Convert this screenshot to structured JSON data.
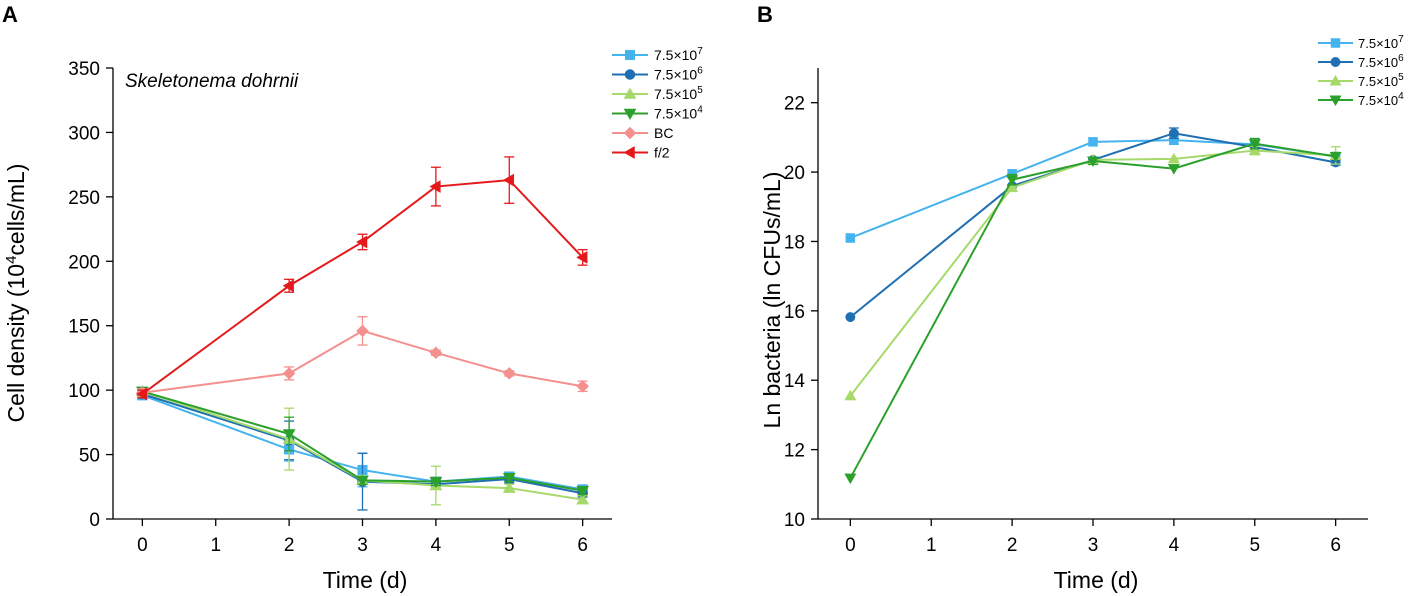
{
  "chart_data": [
    {
      "panel": "A",
      "type": "line",
      "annotation": "Skeletonema dohrnii",
      "xlabel": "Time (d)",
      "ylabel_prefix": "Cell density (10",
      "ylabel_sup": "4",
      "ylabel_suffix": "cells/mL)",
      "xlim": [
        -0.4,
        6.4
      ],
      "ylim": [
        0,
        350
      ],
      "xticks": [
        0,
        1,
        2,
        3,
        4,
        5,
        6
      ],
      "yticks": [
        0,
        50,
        100,
        150,
        200,
        250,
        300,
        350
      ],
      "legend_position": "top-right",
      "series": [
        {
          "label_base": "7.5×10",
          "label_sup": "7",
          "color": "#45b3ee",
          "marker": "square",
          "x": [
            0,
            2,
            3,
            4,
            5,
            6
          ],
          "y": [
            96,
            54,
            38,
            29,
            33,
            23
          ],
          "err": [
            3,
            9,
            13,
            3,
            3,
            3
          ]
        },
        {
          "label_base": "7.5×10",
          "label_sup": "6",
          "color": "#1f6fb2",
          "marker": "circle",
          "x": [
            0,
            2,
            3,
            4,
            5,
            6
          ],
          "y": [
            97,
            61,
            29,
            27,
            31,
            20
          ],
          "err": [
            3,
            15,
            22,
            3,
            3,
            3
          ]
        },
        {
          "label_base": "7.5×10",
          "label_sup": "5",
          "color": "#a6d96a",
          "marker": "triangle-up",
          "x": [
            0,
            2,
            3,
            4,
            5,
            6
          ],
          "y": [
            99,
            62,
            30,
            26,
            24,
            15
          ],
          "err": [
            3,
            24,
            3,
            15,
            3,
            3
          ]
        },
        {
          "label_base": "7.5×10",
          "label_sup": "4",
          "color": "#2ca02c",
          "marker": "triangle-down",
          "x": [
            0,
            2,
            3,
            4,
            5,
            6
          ],
          "y": [
            99,
            66,
            30,
            29,
            32,
            22
          ],
          "err": [
            3,
            13,
            3,
            3,
            3,
            3
          ]
        },
        {
          "label_base": "BC",
          "label_sup": "",
          "color": "#f4908e",
          "marker": "diamond",
          "x": [
            0,
            2,
            3,
            4,
            5,
            6
          ],
          "y": [
            98,
            113,
            146,
            129,
            113,
            103
          ],
          "err": [
            3,
            5,
            11,
            2,
            2,
            4
          ]
        },
        {
          "label_base": "f/2",
          "label_sup": "",
          "color": "#e3191c",
          "marker": "triangle-left",
          "x": [
            0,
            2,
            3,
            4,
            5,
            6
          ],
          "y": [
            97,
            181,
            215,
            258,
            263,
            203
          ],
          "err": [
            3,
            5,
            6,
            15,
            18,
            6
          ]
        }
      ]
    },
    {
      "panel": "B",
      "type": "line",
      "xlabel": "Time (d)",
      "ylabel": "Ln bacteria (ln CFUs/mL)",
      "xlim": [
        -0.4,
        6.4
      ],
      "ylim": [
        10,
        23
      ],
      "xticks": [
        0,
        1,
        2,
        3,
        4,
        5,
        6
      ],
      "yticks": [
        10,
        12,
        14,
        16,
        18,
        20,
        22
      ],
      "legend_position": "top-right",
      "series": [
        {
          "label_base": "7.5×10",
          "label_sup": "7",
          "color": "#45b3ee",
          "marker": "square",
          "x": [
            0,
            2,
            3,
            4,
            5,
            6
          ],
          "y": [
            18.1,
            19.95,
            20.87,
            20.92,
            20.8,
            20.45
          ],
          "err": [
            0,
            0,
            0,
            0.12,
            0,
            0
          ]
        },
        {
          "label_base": "7.5×10",
          "label_sup": "6",
          "color": "#1f6fb2",
          "marker": "circle",
          "x": [
            0,
            2,
            3,
            4,
            5,
            6
          ],
          "y": [
            15.82,
            19.6,
            20.35,
            21.12,
            20.72,
            20.28
          ],
          "err": [
            0,
            0,
            0,
            0.15,
            0,
            0.08
          ]
        },
        {
          "label_base": "7.5×10",
          "label_sup": "5",
          "color": "#a6d96a",
          "marker": "triangle-up",
          "x": [
            0,
            2,
            3,
            4,
            5,
            6
          ],
          "y": [
            13.55,
            19.55,
            20.35,
            20.38,
            20.62,
            20.48
          ],
          "err": [
            0,
            0,
            0,
            0,
            0.12,
            0.25
          ]
        },
        {
          "label_base": "7.5×10",
          "label_sup": "4",
          "color": "#2ca02c",
          "marker": "triangle-down",
          "x": [
            0,
            2,
            3,
            4,
            5,
            6
          ],
          "y": [
            11.18,
            19.78,
            20.32,
            20.1,
            20.82,
            20.45
          ],
          "err": [
            0,
            0.15,
            0.1,
            0,
            0.15,
            0
          ]
        }
      ]
    }
  ]
}
